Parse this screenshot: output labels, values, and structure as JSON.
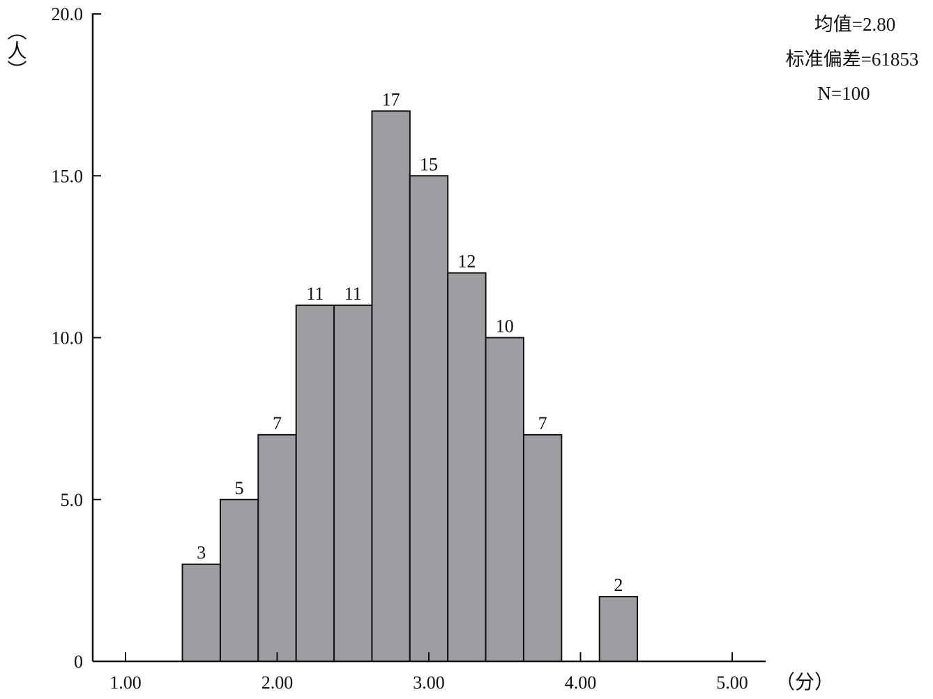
{
  "chart_data": {
    "type": "bar",
    "title": "",
    "xlabel": "（分）",
    "ylabel": "（人）",
    "xlim": [
      1.0,
      5.0
    ],
    "ylim": [
      0,
      20
    ],
    "grid": false,
    "x_ticks": [
      {
        "value": 1.0,
        "label": "1.00"
      },
      {
        "value": 2.0,
        "label": "2.00"
      },
      {
        "value": 3.0,
        "label": "3.00"
      },
      {
        "value": 4.0,
        "label": "4.00"
      },
      {
        "value": 5.0,
        "label": "5.00"
      }
    ],
    "y_ticks": [
      {
        "value": 0,
        "label": "0"
      },
      {
        "value": 5,
        "label": "5.0"
      },
      {
        "value": 10,
        "label": "10.0"
      },
      {
        "value": 15,
        "label": "15.0"
      },
      {
        "value": 20,
        "label": "20.0"
      }
    ],
    "bin_width": 0.25,
    "bins": [
      {
        "x": 1.5,
        "value": 3,
        "label": "3"
      },
      {
        "x": 1.75,
        "value": 5,
        "label": "5"
      },
      {
        "x": 2.0,
        "value": 7,
        "label": "7"
      },
      {
        "x": 2.25,
        "value": 11,
        "label": "11"
      },
      {
        "x": 2.5,
        "value": 11,
        "label": "11"
      },
      {
        "x": 2.75,
        "value": 17,
        "label": "17"
      },
      {
        "x": 3.0,
        "value": 15,
        "label": "15"
      },
      {
        "x": 3.25,
        "value": 12,
        "label": "12"
      },
      {
        "x": 3.5,
        "value": 10,
        "label": "10"
      },
      {
        "x": 3.75,
        "value": 7,
        "label": "7"
      },
      {
        "x": 4.25,
        "value": 2,
        "label": "2"
      }
    ],
    "stats": {
      "mean": "均值=2.80",
      "std": "标准偏差=61853",
      "n": "N=100"
    },
    "colors": {
      "bar": "#9c9ea1",
      "outline": "#111111"
    }
  }
}
